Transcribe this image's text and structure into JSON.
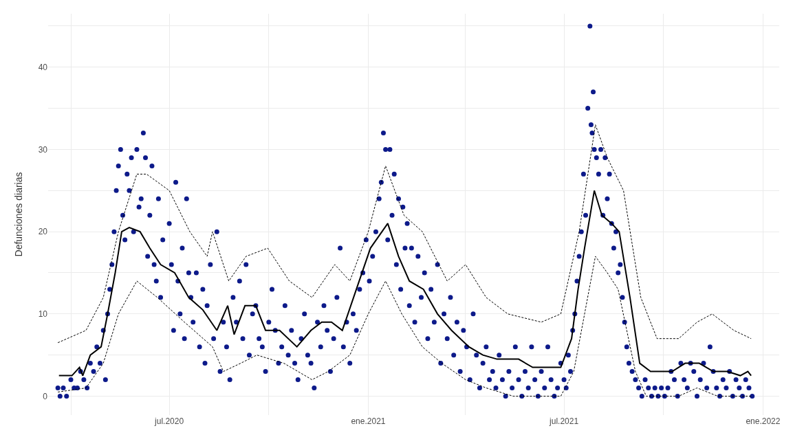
{
  "chart_data": {
    "type": "scatter",
    "ylabel": "Defunciones diarias",
    "grid": true,
    "xlim": [
      "2020-03-11",
      "2022-01-16"
    ],
    "xticks": [
      {
        "value": "2020-04-01",
        "label": null
      },
      {
        "value": "2020-07-01",
        "label": "jul.2020"
      },
      {
        "value": "2020-10-01",
        "label": null
      },
      {
        "value": "2021-01-01",
        "label": "ene.2021"
      },
      {
        "value": "2021-04-01",
        "label": null
      },
      {
        "value": "2021-07-01",
        "label": "jul.2021"
      },
      {
        "value": "2021-10-01",
        "label": null
      },
      {
        "value": "2022-01-01",
        "label": "ene.2022"
      }
    ],
    "ylim": [
      -2.3,
      46.5
    ],
    "yticks": [
      0,
      {
        "value": 5,
        "label": null
      },
      10,
      {
        "value": 15,
        "label": null
      },
      20,
      {
        "value": 25,
        "label": null
      },
      30,
      {
        "value": 35,
        "label": null
      },
      40,
      {
        "value": 45,
        "label": null
      }
    ],
    "series": [
      {
        "marker": "circle",
        "color": "#0d1a8a",
        "x": [
          "2020-03-20",
          "2020-03-22",
          "2020-03-25",
          "2020-03-28",
          "2020-04-01",
          "2020-04-04",
          "2020-04-07",
          "2020-04-10",
          "2020-04-13",
          "2020-04-16",
          "2020-04-19",
          "2020-04-22",
          "2020-04-25",
          "2020-04-28",
          "2020-05-01",
          "2020-05-03",
          "2020-05-05",
          "2020-05-07",
          "2020-05-09",
          "2020-05-11",
          "2020-05-13",
          "2020-05-15",
          "2020-05-17",
          "2020-05-19",
          "2020-05-21",
          "2020-05-23",
          "2020-05-25",
          "2020-05-27",
          "2020-05-29",
          "2020-06-01",
          "2020-06-03",
          "2020-06-05",
          "2020-06-07",
          "2020-06-09",
          "2020-06-11",
          "2020-06-13",
          "2020-06-15",
          "2020-06-17",
          "2020-06-19",
          "2020-06-21",
          "2020-06-23",
          "2020-06-25",
          "2020-07-01",
          "2020-07-03",
          "2020-07-05",
          "2020-07-07",
          "2020-07-09",
          "2020-07-11",
          "2020-07-13",
          "2020-07-15",
          "2020-07-17",
          "2020-07-19",
          "2020-07-21",
          "2020-07-23",
          "2020-07-26",
          "2020-07-29",
          "2020-08-01",
          "2020-08-03",
          "2020-08-05",
          "2020-08-08",
          "2020-08-11",
          "2020-08-14",
          "2020-08-17",
          "2020-08-20",
          "2020-08-23",
          "2020-08-26",
          "2020-08-29",
          "2020-09-01",
          "2020-09-04",
          "2020-09-07",
          "2020-09-10",
          "2020-09-13",
          "2020-09-16",
          "2020-09-19",
          "2020-09-22",
          "2020-09-25",
          "2020-09-28",
          "2020-10-01",
          "2020-10-04",
          "2020-10-07",
          "2020-10-10",
          "2020-10-13",
          "2020-10-16",
          "2020-10-19",
          "2020-10-22",
          "2020-10-25",
          "2020-10-28",
          "2020-10-31",
          "2020-11-03",
          "2020-11-06",
          "2020-11-09",
          "2020-11-12",
          "2020-11-15",
          "2020-11-18",
          "2020-11-21",
          "2020-11-24",
          "2020-11-27",
          "2020-11-30",
          "2020-12-03",
          "2020-12-06",
          "2020-12-09",
          "2020-12-12",
          "2020-12-15",
          "2020-12-18",
          "2020-12-21",
          "2020-12-24",
          "2020-12-27",
          "2020-12-30",
          "2021-01-02",
          "2021-01-05",
          "2021-01-08",
          "2021-01-11",
          "2021-01-13",
          "2021-01-15",
          "2021-01-17",
          "2021-01-19",
          "2021-01-21",
          "2021-01-23",
          "2021-01-25",
          "2021-01-27",
          "2021-01-29",
          "2021-01-31",
          "2021-02-02",
          "2021-02-04",
          "2021-02-06",
          "2021-02-08",
          "2021-02-10",
          "2021-02-13",
          "2021-02-16",
          "2021-02-19",
          "2021-02-22",
          "2021-02-25",
          "2021-02-28",
          "2021-03-03",
          "2021-03-06",
          "2021-03-09",
          "2021-03-12",
          "2021-03-15",
          "2021-03-18",
          "2021-03-21",
          "2021-03-24",
          "2021-03-27",
          "2021-03-30",
          "2021-04-02",
          "2021-04-05",
          "2021-04-08",
          "2021-04-11",
          "2021-04-14",
          "2021-04-17",
          "2021-04-20",
          "2021-04-23",
          "2021-04-26",
          "2021-04-29",
          "2021-05-02",
          "2021-05-05",
          "2021-05-08",
          "2021-05-11",
          "2021-05-14",
          "2021-05-17",
          "2021-05-20",
          "2021-05-23",
          "2021-05-26",
          "2021-05-29",
          "2021-06-01",
          "2021-06-04",
          "2021-06-07",
          "2021-06-10",
          "2021-06-13",
          "2021-06-16",
          "2021-06-19",
          "2021-06-22",
          "2021-06-25",
          "2021-06-28",
          "2021-07-01",
          "2021-07-03",
          "2021-07-05",
          "2021-07-07",
          "2021-07-09",
          "2021-07-11",
          "2021-07-13",
          "2021-07-15",
          "2021-07-17",
          "2021-07-19",
          "2021-07-21",
          "2021-07-23",
          "2021-07-25",
          "2021-07-26",
          "2021-07-27",
          "2021-07-28",
          "2021-07-29",
          "2021-07-31",
          "2021-08-02",
          "2021-08-04",
          "2021-08-06",
          "2021-08-08",
          "2021-08-10",
          "2021-08-12",
          "2021-08-14",
          "2021-08-16",
          "2021-08-18",
          "2021-08-20",
          "2021-08-22",
          "2021-08-24",
          "2021-08-26",
          "2021-08-28",
          "2021-08-30",
          "2021-09-02",
          "2021-09-05",
          "2021-09-08",
          "2021-09-11",
          "2021-09-14",
          "2021-09-17",
          "2021-09-20",
          "2021-09-23",
          "2021-09-26",
          "2021-09-29",
          "2021-10-02",
          "2021-10-05",
          "2021-10-08",
          "2021-10-11",
          "2021-10-14",
          "2021-10-17",
          "2021-10-20",
          "2021-10-23",
          "2021-10-26",
          "2021-10-29",
          "2021-11-01",
          "2021-11-04",
          "2021-11-07",
          "2021-11-10",
          "2021-11-13",
          "2021-11-16",
          "2021-11-19",
          "2021-11-22",
          "2021-11-25",
          "2021-11-28",
          "2021-12-01",
          "2021-12-04",
          "2021-12-07",
          "2021-12-10",
          "2021-12-13",
          "2021-12-16",
          "2021-12-19",
          "2021-12-22"
        ],
        "values": [
          1,
          0,
          1,
          0,
          2,
          1,
          1,
          3,
          2,
          1,
          4,
          3,
          6,
          4,
          8,
          2,
          10,
          13,
          16,
          20,
          25,
          28,
          30,
          22,
          19,
          27,
          25,
          29,
          20,
          30,
          23,
          24,
          32,
          29,
          17,
          22,
          28,
          16,
          14,
          24,
          12,
          19,
          21,
          16,
          8,
          26,
          14,
          10,
          18,
          7,
          24,
          15,
          12,
          9,
          15,
          6,
          13,
          4,
          11,
          16,
          7,
          20,
          3,
          9,
          6,
          2,
          12,
          9,
          14,
          7,
          16,
          5,
          10,
          11,
          7,
          6,
          3,
          9,
          13,
          8,
          4,
          6,
          11,
          5,
          8,
          4,
          2,
          7,
          10,
          5,
          4,
          1,
          9,
          6,
          11,
          8,
          3,
          7,
          12,
          18,
          6,
          9,
          4,
          10,
          8,
          13,
          15,
          19,
          14,
          17,
          20,
          24,
          26,
          32,
          30,
          19,
          30,
          22,
          27,
          16,
          24,
          13,
          23,
          18,
          21,
          11,
          18,
          9,
          17,
          12,
          15,
          7,
          13,
          9,
          16,
          4,
          10,
          7,
          12,
          5,
          9,
          3,
          8,
          6,
          2,
          10,
          5,
          1,
          4,
          6,
          2,
          3,
          1,
          5,
          2,
          0,
          3,
          1,
          6,
          2,
          0,
          3,
          1,
          6,
          2,
          0,
          3,
          1,
          6,
          2,
          0,
          1,
          4,
          2,
          1,
          5,
          3,
          8,
          10,
          14,
          17,
          20,
          27,
          22,
          35,
          45,
          33,
          32,
          37,
          30,
          29,
          27,
          30,
          22,
          29,
          24,
          27,
          21,
          18,
          20,
          15,
          16,
          12,
          9,
          6,
          4,
          3,
          2,
          1,
          0,
          2,
          1,
          0,
          1,
          0,
          1,
          0,
          1,
          3,
          2,
          0,
          4,
          2,
          1,
          4,
          3,
          0,
          2,
          4,
          1,
          6,
          3,
          1,
          0,
          2,
          1,
          3,
          0,
          2,
          1,
          0,
          2,
          1,
          0
        ]
      },
      {
        "type": "line",
        "marker": "none",
        "line_style": "solid",
        "color": "#000000",
        "x": [
          "2020-03-21",
          "2020-04-02",
          "2020-04-09",
          "2020-04-12",
          "2020-04-19",
          "2020-04-29",
          "2020-05-05",
          "2020-05-12",
          "2020-05-18",
          "2020-05-25",
          "2020-06-04",
          "2020-06-13",
          "2020-06-23",
          "2020-07-06",
          "2020-07-19",
          "2020-08-01",
          "2020-08-14",
          "2020-08-24",
          "2020-08-30",
          "2020-09-09",
          "2020-09-19",
          "2020-09-28",
          "2020-10-11",
          "2020-10-27",
          "2020-11-09",
          "2020-11-19",
          "2020-11-28",
          "2020-12-08",
          "2020-12-21",
          "2021-01-03",
          "2021-01-19",
          "2021-01-29",
          "2021-02-08",
          "2021-02-21",
          "2021-03-06",
          "2021-03-19",
          "2021-04-04",
          "2021-04-17",
          "2021-04-30",
          "2021-05-20",
          "2021-06-02",
          "2021-06-28",
          "2021-07-08",
          "2021-07-14",
          "2021-07-20",
          "2021-07-29",
          "2021-08-05",
          "2021-08-14",
          "2021-08-21",
          "2021-08-31",
          "2021-09-09",
          "2021-09-19",
          "2021-10-09",
          "2021-10-21",
          "2021-11-03",
          "2021-11-16",
          "2021-11-29",
          "2021-12-11",
          "2021-12-18",
          "2021-12-21"
        ],
        "values": [
          2.5,
          2.5,
          3.5,
          2.5,
          5,
          6,
          10,
          15,
          20,
          20.5,
          20,
          18,
          16,
          15,
          12,
          10.5,
          8,
          11,
          7.5,
          11,
          11,
          8,
          8,
          6,
          8,
          9,
          9,
          8,
          13,
          18,
          21,
          17,
          14,
          13,
          10,
          8,
          6,
          5,
          4.5,
          4.5,
          3.5,
          3.5,
          7,
          13,
          18,
          25,
          22,
          21,
          20,
          12,
          4,
          3,
          3,
          4,
          4,
          3,
          3,
          2.5,
          3,
          2.5
        ]
      },
      {
        "type": "line",
        "marker": "none",
        "line_style": "dashed",
        "color": "#000000",
        "x": [
          "2020-03-20",
          "2020-04-15",
          "2020-05-01",
          "2020-05-15",
          "2020-06-01",
          "2020-06-10",
          "2020-07-01",
          "2020-07-20",
          "2020-08-05",
          "2020-08-10",
          "2020-08-25",
          "2020-09-10",
          "2020-09-30",
          "2020-10-20",
          "2020-11-10",
          "2020-12-01",
          "2020-12-15",
          "2021-01-01",
          "2021-01-17",
          "2021-02-03",
          "2021-02-20",
          "2021-03-15",
          "2021-04-01",
          "2021-04-20",
          "2021-05-10",
          "2021-06-10",
          "2021-06-28",
          "2021-07-15",
          "2021-07-30",
          "2021-08-10",
          "2021-08-25",
          "2021-09-10",
          "2021-09-25",
          "2021-10-15",
          "2021-11-01",
          "2021-11-15",
          "2021-12-05",
          "2021-12-21"
        ],
        "values": [
          6.5,
          8,
          12,
          20,
          27,
          27,
          25,
          20,
          17,
          20,
          14,
          17,
          18,
          14,
          12,
          16,
          14,
          20,
          28,
          22,
          20,
          14,
          16,
          12,
          10,
          9,
          10,
          20,
          33,
          29,
          25,
          12,
          7,
          7,
          9,
          10,
          8,
          7
        ]
      },
      {
        "type": "line",
        "marker": "none",
        "line_style": "dashed",
        "color": "#000000",
        "x": [
          "2020-03-20",
          "2020-04-15",
          "2020-05-01",
          "2020-05-15",
          "2020-06-01",
          "2020-06-20",
          "2020-07-15",
          "2020-08-10",
          "2020-08-20",
          "2020-09-05",
          "2020-09-20",
          "2020-10-15",
          "2020-11-10",
          "2020-11-25",
          "2020-12-15",
          "2021-01-01",
          "2021-01-17",
          "2021-02-01",
          "2021-02-20",
          "2021-03-10",
          "2021-04-01",
          "2021-04-20",
          "2021-05-15",
          "2021-06-28",
          "2021-07-10",
          "2021-07-20",
          "2021-07-30",
          "2021-08-10",
          "2021-08-20",
          "2021-09-05",
          "2021-09-15",
          "2021-10-15",
          "2021-11-01",
          "2021-11-20",
          "2021-12-21"
        ],
        "values": [
          0.5,
          1,
          4,
          10,
          14,
          12,
          9,
          6,
          3,
          4,
          5,
          4,
          2,
          3,
          5,
          10,
          14,
          10,
          6,
          4,
          2,
          1,
          0,
          0,
          3,
          10,
          17,
          15,
          13,
          3,
          0,
          0,
          1,
          0,
          0
        ]
      }
    ]
  }
}
